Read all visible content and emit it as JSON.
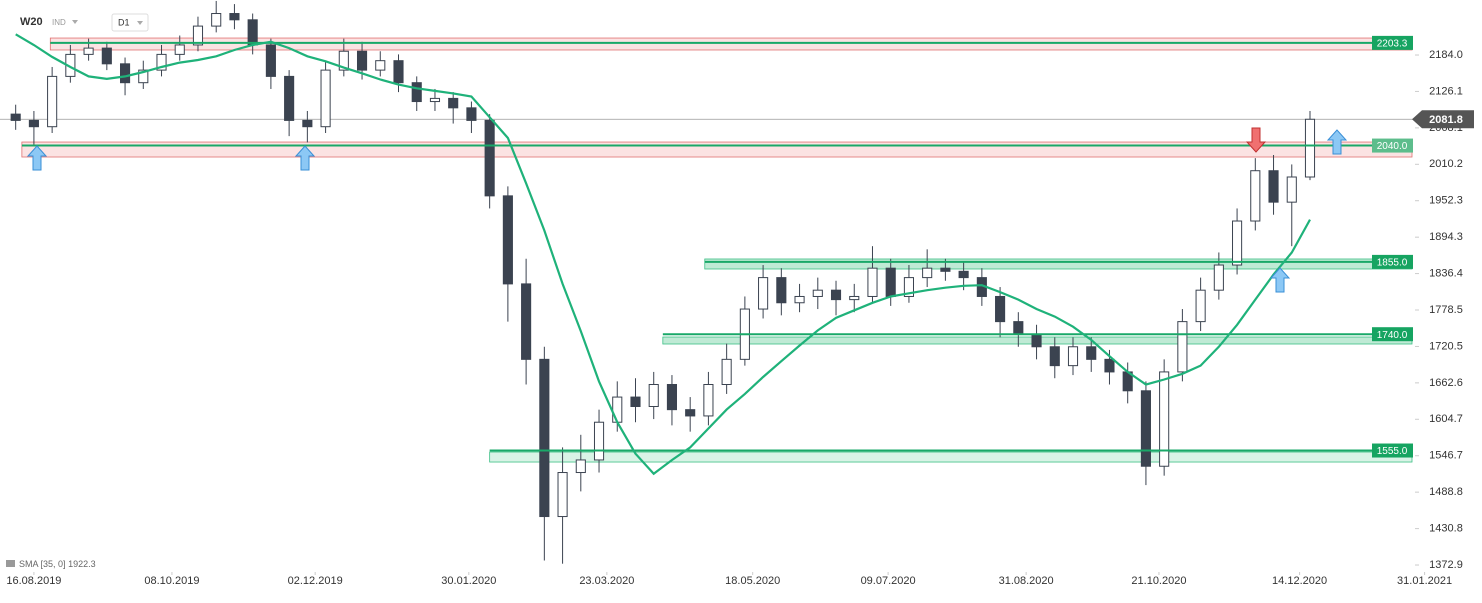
{
  "chart_data": {
    "type": "candlestick",
    "symbol": "W20",
    "market": "IND",
    "interval": "D1",
    "x": [
      -1,
      0,
      1,
      2,
      3,
      4,
      5,
      6,
      7,
      8,
      9,
      10,
      11,
      12,
      13,
      14,
      15,
      16,
      17,
      18,
      19,
      20,
      21,
      22,
      23,
      24,
      25,
      26,
      27,
      28,
      29,
      30,
      31,
      32,
      33,
      34,
      35,
      36,
      37,
      38,
      39,
      40,
      41,
      42,
      43,
      44,
      45,
      46,
      47,
      48,
      49,
      50,
      51,
      52,
      53,
      54,
      55,
      56,
      57,
      58,
      59,
      60,
      61,
      62,
      63,
      64,
      65,
      66,
      67,
      68,
      69,
      70
    ],
    "open": [
      2090,
      2080,
      2070,
      2150,
      2185,
      2195,
      2170,
      2140,
      2160,
      2185,
      2200,
      2230,
      2250,
      2240,
      2200,
      2150,
      2080,
      2070,
      2160,
      2190,
      2160,
      2175,
      2140,
      2110,
      2115,
      2100,
      2080,
      1960,
      1820,
      1700,
      1450,
      1520,
      1540,
      1600,
      1640,
      1625,
      1660,
      1620,
      1610,
      1660,
      1700,
      1780,
      1830,
      1790,
      1800,
      1810,
      1795,
      1800,
      1845,
      1800,
      1830,
      1845,
      1840,
      1830,
      1800,
      1760,
      1740,
      1720,
      1690,
      1720,
      1700,
      1680,
      1650,
      1530,
      1680,
      1760,
      1810,
      1850,
      1920,
      2000,
      1950,
      1990
    ],
    "high": [
      2105,
      2095,
      2165,
      2200,
      2210,
      2205,
      2180,
      2175,
      2200,
      2215,
      2245,
      2270,
      2265,
      2250,
      2210,
      2160,
      2095,
      2175,
      2210,
      2205,
      2190,
      2185,
      2150,
      2130,
      2125,
      2110,
      2090,
      1975,
      1860,
      1720,
      1560,
      1580,
      1620,
      1665,
      1670,
      1680,
      1675,
      1640,
      1680,
      1725,
      1800,
      1850,
      1845,
      1820,
      1830,
      1825,
      1820,
      1880,
      1860,
      1850,
      1875,
      1860,
      1855,
      1845,
      1815,
      1775,
      1755,
      1735,
      1735,
      1735,
      1715,
      1695,
      1665,
      1700,
      1780,
      1830,
      1870,
      1940,
      2020,
      2025,
      2010,
      2095
    ],
    "low": [
      2065,
      2040,
      2060,
      2140,
      2175,
      2160,
      2120,
      2130,
      2150,
      2175,
      2190,
      2220,
      2225,
      2185,
      2130,
      2055,
      2045,
      2060,
      2150,
      2145,
      2150,
      2125,
      2095,
      2095,
      2075,
      2060,
      1940,
      1760,
      1660,
      1380,
      1375,
      1490,
      1520,
      1585,
      1600,
      1605,
      1595,
      1585,
      1595,
      1645,
      1690,
      1765,
      1770,
      1775,
      1780,
      1770,
      1775,
      1790,
      1785,
      1790,
      1815,
      1825,
      1810,
      1785,
      1735,
      1720,
      1700,
      1670,
      1675,
      1680,
      1660,
      1630,
      1500,
      1515,
      1665,
      1745,
      1795,
      1835,
      1905,
      1930,
      1880,
      1985
    ],
    "close": [
      2080,
      2070,
      2150,
      2185,
      2195,
      2170,
      2140,
      2160,
      2185,
      2200,
      2230,
      2250,
      2240,
      2200,
      2150,
      2080,
      2070,
      2160,
      2190,
      2160,
      2175,
      2140,
      2110,
      2115,
      2100,
      2080,
      1960,
      1820,
      1700,
      1450,
      1520,
      1540,
      1600,
      1640,
      1625,
      1660,
      1620,
      1610,
      1660,
      1700,
      1780,
      1830,
      1790,
      1800,
      1810,
      1795,
      1800,
      1845,
      1800,
      1830,
      1845,
      1840,
      1830,
      1800,
      1760,
      1740,
      1720,
      1690,
      1720,
      1700,
      1680,
      1650,
      1530,
      1680,
      1760,
      1810,
      1850,
      1920,
      2000,
      1950,
      1990,
      2081.8
    ],
    "up_color": "#ffffff",
    "down_color": "#3b4350",
    "sma": {
      "name": "SMA",
      "params": "[35, 0]",
      "value": 1922.3,
      "color": "#1fb27a",
      "values": [
        2217,
        2200,
        2181,
        2165,
        2150,
        2146,
        2150,
        2157,
        2165,
        2172,
        2176,
        2182,
        2192,
        2200,
        2205,
        2195,
        2182,
        2174,
        2164,
        2155,
        2145,
        2137,
        2131,
        2127,
        2123,
        2118,
        2085,
        2052,
        1980,
        1905,
        1820,
        1745,
        1665,
        1600,
        1550,
        1518,
        1540,
        1560,
        1590,
        1620,
        1645,
        1672,
        1697,
        1722,
        1746,
        1766,
        1778,
        1790,
        1800,
        1805,
        1810,
        1814,
        1817,
        1818,
        1807,
        1795,
        1780,
        1768,
        1752,
        1731,
        1705,
        1680,
        1660,
        1668,
        1677,
        1690,
        1720,
        1755,
        1795,
        1835,
        1870,
        1922.3
      ]
    },
    "levels": [
      {
        "value": 2203.3,
        "label": "2203.3",
        "zone": [
          2192,
          2211
        ],
        "from": 0.9,
        "zone_color": "#fbe3e3",
        "zone_stroke": "#e07070",
        "label_color": "#16a461"
      },
      {
        "value": 2040,
        "label": "2040.0",
        "zone": [
          2021.8,
          2045.6
        ],
        "from": -0.66,
        "zone_color": "#fbe3e3",
        "zone_stroke": "#e07070",
        "label_color": "#5dbd8c"
      },
      {
        "value": 1855,
        "label": "1855.0",
        "zone": [
          1843.7,
          1859.6
        ],
        "from": 36.8,
        "zone_color": "#bfead5",
        "zone_stroke": "#3cbf85",
        "label_color": "#16a461"
      },
      {
        "value": 1740,
        "label": "1740.0",
        "zone": [
          1724.4,
          1735.5
        ],
        "from": 34.5,
        "zone_color": "#bfead5",
        "zone_stroke": "#3cbf85",
        "label_color": "#16a461"
      },
      {
        "value": 1555,
        "label": "1555.0",
        "zone": [
          1536.7,
          1552.6
        ],
        "from": 25.0,
        "zone_color": "#d9f3e6",
        "zone_stroke": "#3cbf85",
        "label_color": "#16a461"
      }
    ],
    "xlim": [
      -1.86,
      75.76
    ],
    "xticks": [
      {
        "value": 0,
        "label": "16.08.2019"
      },
      {
        "value": 7.571,
        "label": "08.10.2019"
      },
      {
        "value": 15.429,
        "label": "02.12.2019"
      },
      {
        "value": 23.857,
        "label": "30.01.2020"
      },
      {
        "value": 31.429,
        "label": "23.03.2020"
      },
      {
        "value": 39.429,
        "label": "18.05.2020"
      },
      {
        "value": 46.857,
        "label": "09.07.2020"
      },
      {
        "value": 54.429,
        "label": "31.08.2020"
      },
      {
        "value": 61.714,
        "label": "21.10.2020"
      },
      {
        "value": 69.429,
        "label": "14.12.2020"
      },
      {
        "value": 76.286,
        "label": "31.01.2021"
      }
    ],
    "ylim": [
      1361.8,
      2271.5
    ],
    "yticks": [
      {
        "value": 2184,
        "label": "2184.0"
      },
      2126.1,
      2068.1,
      2010.2,
      1952.3,
      1894.3,
      1836.4,
      1778.5,
      1720.5,
      1662.6,
      1604.7,
      1546.7,
      1488.8,
      1430.8,
      1372.9
    ]
  }
}
